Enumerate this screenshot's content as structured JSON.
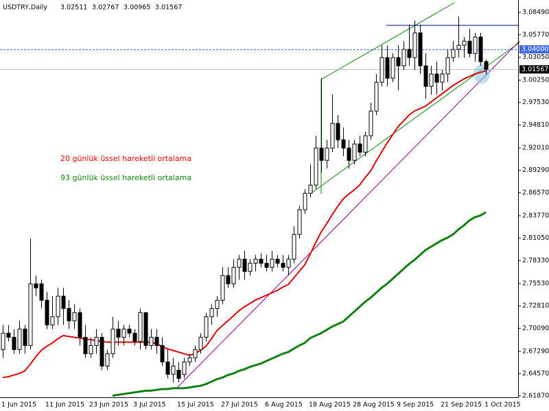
{
  "chart_data": {
    "type": "candlestick",
    "title": "USDTRY,Daily",
    "categories": [
      "1 Jun 2015",
      null,
      null,
      null,
      null,
      null,
      null,
      null,
      "11 Jun 2015",
      null,
      null,
      null,
      null,
      null,
      null,
      null,
      "23 Jun 2015",
      null,
      null,
      null,
      null,
      null,
      null,
      null,
      "3 Jul 2015",
      null,
      null,
      null,
      null,
      null,
      null,
      null,
      "15 Jul 2015",
      null,
      null,
      null,
      null,
      null,
      null,
      null,
      "27 Jul 2015",
      null,
      null,
      null,
      null,
      null,
      null,
      null,
      "6 Aug 2015",
      null,
      null,
      null,
      null,
      null,
      null,
      null,
      "18 Aug 2015",
      null,
      null,
      null,
      null,
      null,
      null,
      null,
      "28 Aug 2015",
      null,
      null,
      null,
      null,
      null,
      null,
      null,
      "9 Sep 2015",
      null,
      null,
      null,
      null,
      null,
      null,
      null,
      "21 Sep 2015",
      null,
      null,
      null,
      null,
      null,
      null,
      null,
      "1 Oct 2015"
    ],
    "open": [
      2.675,
      2.695,
      2.69,
      2.675,
      2.7,
      2.68,
      2.755,
      2.755,
      2.735,
      2.705,
      2.715,
      2.74,
      2.725,
      2.71,
      2.72,
      2.69,
      2.67,
      2.68,
      2.69,
      2.655,
      2.67,
      2.7,
      2.69,
      2.7,
      2.695,
      2.685,
      2.72,
      2.68,
      2.69,
      2.68,
      2.66,
      2.645,
      2.65,
      2.645,
      2.66,
      2.665,
      2.675,
      2.69,
      2.715,
      2.725,
      2.735,
      2.765,
      2.755,
      2.775,
      2.785,
      2.77,
      2.78,
      2.785,
      2.78,
      2.775,
      2.785,
      2.78,
      2.775,
      2.785,
      2.815,
      2.845,
      2.865,
      2.875,
      2.92,
      2.905,
      2.92,
      2.95,
      2.93,
      2.92,
      2.905,
      2.925,
      2.915,
      2.935,
      2.965,
      3.0,
      3.03,
      3.005,
      3.03,
      3.02,
      3.04,
      3.03,
      3.06,
      3.02,
      2.995,
      3.01,
      3.0,
      3.01,
      3.03,
      3.04,
      3.045,
      3.05,
      3.035,
      3.055,
      3.02511
    ],
    "high": [
      2.705,
      2.705,
      2.7,
      2.71,
      2.705,
      2.81,
      2.765,
      2.76,
      2.745,
      2.74,
      2.75,
      2.75,
      2.735,
      2.73,
      2.725,
      2.705,
      2.69,
      2.7,
      2.695,
      2.675,
      2.715,
      2.71,
      2.705,
      2.705,
      2.7,
      2.725,
      2.72,
      2.7,
      2.7,
      2.69,
      2.675,
      2.665,
      2.66,
      2.665,
      2.67,
      2.68,
      2.695,
      2.72,
      2.73,
      2.74,
      2.775,
      2.775,
      2.785,
      2.79,
      2.795,
      2.785,
      2.79,
      2.792,
      2.79,
      2.795,
      2.79,
      2.79,
      2.79,
      2.825,
      2.85,
      2.87,
      2.9,
      2.935,
      3.005,
      2.93,
      2.985,
      2.96,
      2.945,
      2.93,
      2.93,
      2.935,
      2.94,
      2.975,
      3.01,
      3.045,
      3.045,
      3.035,
      3.045,
      3.05,
      3.07,
      3.075,
      3.07,
      3.035,
      3.02,
      3.025,
      3.015,
      3.04,
      3.05,
      3.08,
      3.055,
      3.065,
      3.06,
      3.06,
      3.02767
    ],
    "low": [
      2.665,
      2.685,
      2.67,
      2.67,
      2.67,
      2.675,
      2.74,
      2.725,
      2.7,
      2.7,
      2.705,
      2.705,
      2.7,
      2.7,
      2.68,
      2.665,
      2.665,
      2.67,
      2.65,
      2.65,
      2.665,
      2.68,
      2.68,
      2.69,
      2.68,
      2.675,
      2.675,
      2.675,
      2.67,
      2.655,
      2.64,
      2.635,
      2.635,
      2.64,
      2.655,
      2.66,
      2.67,
      2.685,
      2.705,
      2.715,
      2.73,
      2.75,
      2.75,
      2.76,
      2.76,
      2.765,
      2.77,
      2.775,
      2.77,
      2.77,
      2.775,
      2.77,
      2.765,
      2.78,
      2.81,
      2.84,
      2.86,
      2.87,
      2.89,
      2.895,
      2.915,
      2.92,
      2.91,
      2.895,
      2.9,
      2.91,
      2.91,
      2.93,
      2.96,
      2.995,
      2.995,
      3.0,
      2.99,
      3.015,
      3.02,
      3.015,
      3.01,
      2.98,
      2.985,
      2.985,
      2.99,
      3.0,
      3.025,
      3.03,
      3.03,
      3.03,
      3.025,
      3.02,
      3.00965
    ],
    "close": [
      2.695,
      2.69,
      2.675,
      2.7,
      2.68,
      2.755,
      2.75,
      2.735,
      2.705,
      2.715,
      2.74,
      2.725,
      2.71,
      2.72,
      2.69,
      2.67,
      2.68,
      2.69,
      2.655,
      2.67,
      2.7,
      2.69,
      2.7,
      2.695,
      2.685,
      2.72,
      2.68,
      2.69,
      2.68,
      2.66,
      2.645,
      2.655,
      2.64,
      2.66,
      2.665,
      2.675,
      2.69,
      2.715,
      2.725,
      2.735,
      2.765,
      2.755,
      2.775,
      2.785,
      2.77,
      2.78,
      2.785,
      2.78,
      2.775,
      2.785,
      2.78,
      2.775,
      2.785,
      2.815,
      2.845,
      2.865,
      2.875,
      2.92,
      2.905,
      2.92,
      2.95,
      2.93,
      2.92,
      2.905,
      2.925,
      2.915,
      2.935,
      2.965,
      3.0,
      3.03,
      3.005,
      3.03,
      3.02,
      3.04,
      3.03,
      3.06,
      3.02,
      2.995,
      3.01,
      3.0,
      3.01,
      3.03,
      3.04,
      3.045,
      3.05,
      3.035,
      3.055,
      3.025,
      3.01567
    ],
    "up_color": "#ffffff",
    "down_color": "#000000",
    "wick_color": "#000000",
    "series": [
      {
        "name": "20 günlük üssel hareketli ortalama",
        "color": "#e00000",
        "values": [
          2.641,
          2.642,
          2.644,
          2.646,
          2.649,
          2.657,
          2.666,
          2.674,
          2.679,
          2.683,
          2.688,
          2.692,
          2.691,
          2.69,
          2.689,
          2.688,
          2.687,
          2.686,
          2.685,
          2.684,
          2.684,
          2.684,
          2.684,
          2.684,
          2.684,
          2.684,
          2.684,
          2.684,
          2.682,
          2.679,
          2.676,
          2.674,
          2.672,
          2.67,
          2.668,
          2.67,
          2.674,
          2.679,
          2.688,
          2.698,
          2.704,
          2.71,
          2.716,
          2.722,
          2.727,
          2.731,
          2.735,
          2.738,
          2.741,
          2.744,
          2.747,
          2.751,
          2.754,
          2.762,
          2.77,
          2.778,
          2.791,
          2.805,
          2.818,
          2.828,
          2.839,
          2.849,
          2.858,
          2.864,
          2.869,
          2.875,
          2.884,
          2.892,
          2.904,
          2.915,
          2.926,
          2.936,
          2.946,
          2.953,
          2.96,
          2.965,
          2.968,
          2.971,
          2.976,
          2.981,
          2.986,
          2.991,
          2.996,
          3.0,
          3.004,
          3.007,
          3.01,
          3.012,
          3.014
        ]
      },
      {
        "name": "93 günlük üssel hareketli ortalama",
        "color": "#108010",
        "values": [
          null,
          null,
          null,
          null,
          null,
          null,
          null,
          null,
          null,
          null,
          null,
          null,
          null,
          null,
          null,
          null,
          null,
          null,
          null,
          null,
          2.619,
          2.62,
          2.621,
          2.622,
          2.623,
          2.624,
          2.625,
          2.625,
          2.626,
          2.627,
          2.627,
          2.628,
          2.628,
          2.628,
          2.629,
          2.63,
          2.631,
          2.633,
          2.636,
          2.639,
          2.641,
          2.644,
          2.646,
          2.649,
          2.651,
          2.654,
          2.656,
          2.658,
          2.661,
          2.664,
          2.667,
          2.67,
          2.672,
          2.676,
          2.68,
          2.683,
          2.689,
          2.692,
          2.695,
          2.699,
          2.703,
          2.706,
          2.709,
          2.715,
          2.721,
          2.727,
          2.733,
          2.738,
          2.744,
          2.75,
          2.755,
          2.761,
          2.767,
          2.773,
          2.779,
          2.784,
          2.79,
          2.796,
          2.8,
          2.804,
          2.808,
          2.811,
          2.815,
          2.821,
          2.826,
          2.832,
          2.836,
          2.838,
          2.842
        ]
      }
    ],
    "price_lines": [
      {
        "value": 3.04,
        "label": "3.04000",
        "color": "#4169e1",
        "dashed": true
      },
      {
        "value": 3.01567,
        "color": "#c0c0c0",
        "dashed": false
      }
    ],
    "ylim": [
      2.617,
      3.1
    ],
    "yticks": [
      {
        "value": 3.0849,
        "label": "3.08490"
      },
      {
        "value": 3.0577,
        "label": "3.05770"
      },
      {
        "value": 3.0305,
        "label": "3.03050"
      },
      {
        "value": 3.0025,
        "label": "3.00250"
      },
      {
        "value": 2.9753,
        "label": "2.97530"
      },
      {
        "value": 2.9481,
        "label": "2.94810"
      },
      {
        "value": 2.9201,
        "label": "2.92010"
      },
      {
        "value": 2.8929,
        "label": "2.89290"
      },
      {
        "value": 2.8657,
        "label": "2.86570"
      },
      {
        "value": 2.8377,
        "label": "2.83770"
      },
      {
        "value": 2.8105,
        "label": "2.81050"
      },
      {
        "value": 2.7833,
        "label": "2.78330"
      },
      {
        "value": 2.7553,
        "label": "2.75530"
      },
      {
        "value": 2.7281,
        "label": "2.72810"
      },
      {
        "value": 2.7009,
        "label": "2.70090"
      },
      {
        "value": 2.6729,
        "label": "2.67290"
      },
      {
        "value": 2.6457,
        "label": "2.64570"
      },
      {
        "value": 2.6187,
        "label": "2.61870"
      }
    ],
    "grid": false
  }
}
